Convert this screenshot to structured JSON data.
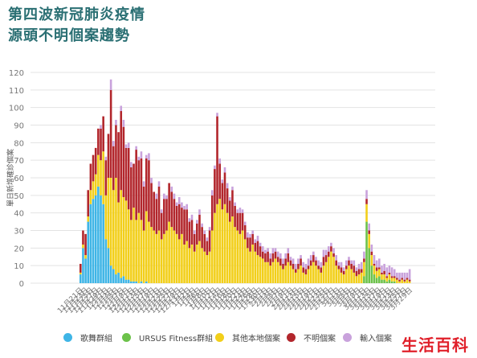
{
  "title_lines": [
    "第四波新冠肺炎疫情",
    "源頭不明個案趨勢"
  ],
  "watermark": "生活百科",
  "colors": {
    "dance": "#3fb5e6",
    "ursus": "#6cc24a",
    "other_local": "#f2cf1a",
    "unknown": "#b2262c",
    "imported": "#c9a2dc",
    "grid": "#e3e3e3",
    "axis_text": "#777777"
  },
  "chart_data": {
    "type": "bar",
    "stacked": true,
    "ylabel": "單日新增確診個案",
    "ylim": [
      0,
      120
    ],
    "yticks": [
      0,
      10,
      20,
      30,
      40,
      50,
      60,
      70,
      80,
      90,
      100,
      110,
      120
    ],
    "grid": true,
    "legend_position": "bottom",
    "xtick_labels": [
      "11月21日",
      "11月23日",
      "11月25日",
      "11月27日",
      "11月29日",
      "12月1日",
      "12月3日",
      "12月5日",
      "12月7日",
      "12月9日",
      "12月11日",
      "12月13日",
      "12月15日",
      "12月17日",
      "12月19日",
      "12月21日",
      "12月23日",
      "12月25日",
      "12月27日",
      "12月29日",
      "12月31日",
      "1月2日",
      "1月4日",
      "1月6日",
      "1月8日",
      "1月10日",
      "1月12日",
      "1月14日",
      "1月16日",
      "1月18日",
      "1月20日",
      "1月22日",
      "1月24日",
      "1月26日",
      "1月28日",
      "1月30日",
      "2月1日",
      "2月3日",
      "2月5日",
      "2月7日",
      "2月9日",
      "2月11日",
      "2月13日",
      "2月15日",
      "2月17日",
      "2月19日",
      "2月21日",
      "2月23日",
      "2月25日",
      "2月27日",
      "3月1日",
      "3月3日",
      "3月5日",
      "3月7日",
      "3月9日",
      "3月11日",
      "3月13日",
      "3月15日",
      "3月17日",
      "3月19日",
      "3月21日",
      "3月23日",
      "3月25日",
      "3月27日",
      "3月29日"
    ],
    "series": [
      {
        "name": "歌舞群組",
        "key": "dance",
        "values": [
          5,
          20,
          14,
          35,
          45,
          48,
          50,
          55,
          50,
          45,
          25,
          20,
          10,
          8,
          5,
          6,
          3,
          4,
          2,
          2,
          1,
          1,
          1,
          0,
          1,
          0,
          1,
          0,
          0,
          0,
          0,
          0,
          0,
          0,
          0,
          0,
          0,
          0,
          0,
          0,
          0,
          0,
          0,
          0,
          0,
          0,
          0,
          0,
          0,
          0,
          0,
          0,
          0,
          0,
          0,
          0,
          0,
          0,
          0,
          0,
          0,
          0,
          0,
          0,
          0,
          0,
          0,
          0,
          0,
          0,
          0,
          0,
          0,
          0,
          0,
          0,
          0,
          0,
          0,
          0,
          0,
          0,
          0,
          0,
          0,
          0,
          0,
          0,
          0,
          0,
          0,
          0,
          0,
          0,
          0,
          0,
          0,
          0,
          0,
          0,
          0,
          0,
          0,
          0,
          0,
          0,
          0,
          0,
          0,
          0,
          0,
          0,
          0,
          0,
          0,
          0,
          0,
          0,
          0,
          0,
          0,
          0,
          0,
          0,
          0,
          0,
          0,
          0,
          0,
          0,
          0
        ]
      },
      {
        "name": "URSUS Fitness群組",
        "key": "ursus",
        "values": [
          0,
          0,
          0,
          0,
          0,
          0,
          0,
          0,
          0,
          0,
          0,
          0,
          0,
          0,
          0,
          0,
          0,
          0,
          0,
          0,
          0,
          0,
          0,
          0,
          0,
          0,
          0,
          0,
          0,
          0,
          0,
          0,
          0,
          0,
          0,
          0,
          0,
          0,
          0,
          0,
          0,
          0,
          0,
          0,
          0,
          0,
          0,
          0,
          0,
          0,
          0,
          0,
          0,
          0,
          0,
          0,
          0,
          0,
          0,
          0,
          0,
          0,
          0,
          0,
          0,
          0,
          0,
          0,
          0,
          0,
          0,
          0,
          0,
          0,
          0,
          0,
          0,
          0,
          0,
          0,
          0,
          0,
          0,
          0,
          0,
          0,
          0,
          0,
          0,
          0,
          0,
          0,
          0,
          0,
          0,
          0,
          0,
          0,
          0,
          0,
          0,
          0,
          0,
          0,
          0,
          0,
          0,
          0,
          0,
          0,
          0,
          0,
          4,
          35,
          20,
          10,
          5,
          3,
          4,
          2,
          2,
          1,
          2,
          1,
          1,
          0,
          0,
          0,
          0,
          0,
          0
        ]
      },
      {
        "name": "其他本地個案",
        "key": "other_local",
        "values": [
          1,
          2,
          2,
          3,
          8,
          10,
          12,
          18,
          20,
          30,
          25,
          40,
          50,
          45,
          55,
          40,
          50,
          45,
          45,
          40,
          35,
          42,
          35,
          40,
          35,
          30,
          40,
          35,
          32,
          30,
          28,
          30,
          25,
          28,
          30,
          35,
          32,
          30,
          28,
          25,
          28,
          22,
          24,
          20,
          22,
          18,
          22,
          24,
          20,
          18,
          16,
          18,
          30,
          40,
          45,
          48,
          42,
          45,
          40,
          35,
          38,
          32,
          30,
          28,
          30,
          25,
          20,
          18,
          22,
          18,
          16,
          15,
          14,
          12,
          12,
          10,
          12,
          14,
          12,
          10,
          8,
          10,
          12,
          10,
          8,
          6,
          8,
          10,
          6,
          5,
          8,
          10,
          12,
          10,
          8,
          6,
          10,
          12,
          15,
          18,
          15,
          10,
          8,
          6,
          5,
          8,
          10,
          8,
          6,
          4,
          5,
          6,
          8,
          10,
          8,
          6,
          5,
          4,
          4,
          3,
          3,
          2,
          3,
          2,
          2,
          2,
          1,
          2,
          1,
          2,
          1
        ]
      },
      {
        "name": "不明個案",
        "key": "unknown",
        "values": [
          5,
          8,
          12,
          15,
          15,
          15,
          15,
          15,
          18,
          20,
          20,
          25,
          50,
          25,
          30,
          40,
          45,
          40,
          30,
          35,
          30,
          25,
          40,
          30,
          35,
          25,
          30,
          35,
          25,
          22,
          20,
          25,
          15,
          20,
          18,
          22,
          20,
          18,
          16,
          20,
          15,
          20,
          18,
          15,
          14,
          10,
          12,
          15,
          12,
          10,
          8,
          12,
          20,
          25,
          50,
          20,
          15,
          18,
          14,
          12,
          15,
          12,
          10,
          12,
          10,
          8,
          6,
          8,
          6,
          5,
          8,
          6,
          4,
          5,
          6,
          4,
          5,
          4,
          3,
          4,
          3,
          4,
          5,
          3,
          3,
          2,
          3,
          4,
          3,
          3,
          2,
          3,
          4,
          3,
          2,
          3,
          5,
          4,
          3,
          3,
          2,
          3,
          2,
          3,
          2,
          2,
          3,
          3,
          4,
          3,
          3,
          2,
          2,
          3,
          2,
          2,
          1,
          2,
          1,
          1,
          2,
          1,
          1,
          1,
          1,
          1,
          1,
          1,
          1,
          1,
          1
        ]
      },
      {
        "name": "輸入個案",
        "key": "imported",
        "values": [
          0,
          0,
          0,
          0,
          0,
          0,
          0,
          0,
          2,
          0,
          2,
          0,
          6,
          3,
          3,
          0,
          3,
          4,
          2,
          3,
          3,
          0,
          2,
          2,
          4,
          3,
          2,
          4,
          3,
          0,
          3,
          3,
          2,
          3,
          2,
          0,
          3,
          3,
          2,
          4,
          3,
          2,
          3,
          2,
          3,
          2,
          2,
          3,
          2,
          2,
          2,
          2,
          3,
          2,
          2,
          3,
          2,
          3,
          3,
          2,
          2,
          2,
          2,
          3,
          2,
          2,
          3,
          2,
          2,
          2,
          3,
          2,
          3,
          2,
          2,
          3,
          3,
          2,
          3,
          3,
          3,
          3,
          3,
          2,
          3,
          3,
          3,
          2,
          3,
          3,
          4,
          3,
          2,
          2,
          3,
          3,
          4,
          3,
          3,
          2,
          3,
          3,
          2,
          3,
          2,
          3,
          2,
          2,
          3,
          2,
          3,
          4,
          4,
          5,
          4,
          4,
          5,
          4,
          5,
          4,
          4,
          5,
          4,
          5,
          4,
          3,
          4,
          3,
          4,
          3,
          6
        ]
      }
    ]
  }
}
